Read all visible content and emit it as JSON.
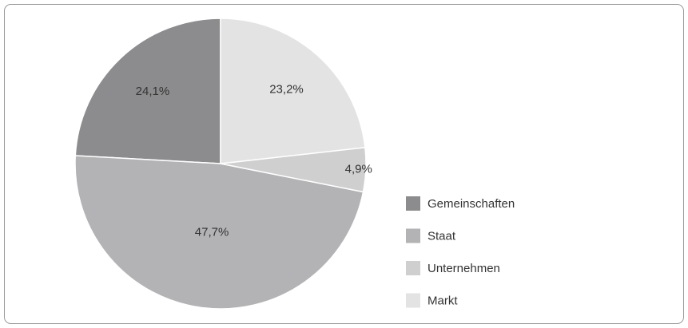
{
  "chart_data": {
    "type": "pie",
    "categories": [
      "Gemeinschaften",
      "Staat",
      "Unternehmen",
      "Markt"
    ],
    "values": [
      24.1,
      47.7,
      4.9,
      23.2
    ],
    "value_labels": [
      "24,1%",
      "47,7%",
      "4,9%",
      "23,2%"
    ],
    "colors": [
      "#8c8c8e",
      "#b3b3b5",
      "#cfcfd0",
      "#e3e3e4"
    ],
    "legend": "right"
  }
}
